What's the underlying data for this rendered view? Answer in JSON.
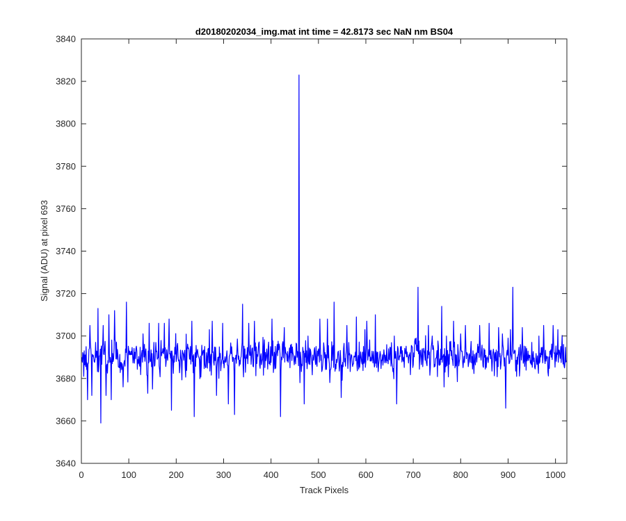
{
  "chart_data": {
    "type": "line",
    "title": "d20180202034_img.mat int time = 42.8173 sec  NaN nm BS04",
    "xlabel": "Track Pixels",
    "ylabel": "Signal (ADU) at pixel 693",
    "xlim": [
      0,
      1024
    ],
    "ylim": [
      3640,
      3840
    ],
    "xticks": [
      0,
      100,
      200,
      300,
      400,
      500,
      600,
      700,
      800,
      900,
      1000
    ],
    "yticks": [
      3640,
      3660,
      3680,
      3700,
      3720,
      3740,
      3760,
      3780,
      3800,
      3820,
      3840
    ],
    "grid": false,
    "line_color": "#0000ff",
    "noise": {
      "baseline": 3690,
      "min": 3659,
      "max": 3723,
      "count": 1024
    },
    "series": [
      {
        "name": "",
        "points": [
          [
            0,
            3690
          ],
          [
            5,
            3681
          ],
          [
            10,
            3695
          ],
          [
            13,
            3670
          ],
          [
            18,
            3705
          ],
          [
            22,
            3672
          ],
          [
            30,
            3697
          ],
          [
            35,
            3713
          ],
          [
            41,
            3659
          ],
          [
            46,
            3705
          ],
          [
            52,
            3672
          ],
          [
            58,
            3710
          ],
          [
            63,
            3670
          ],
          [
            70,
            3712
          ],
          [
            88,
            3676
          ],
          [
            95,
            3716
          ],
          [
            130,
            3701
          ],
          [
            140,
            3673
          ],
          [
            143,
            3706
          ],
          [
            150,
            3675
          ],
          [
            163,
            3706
          ],
          [
            175,
            3706
          ],
          [
            185,
            3708
          ],
          [
            190,
            3665
          ],
          [
            233,
            3707
          ],
          [
            238,
            3662
          ],
          [
            270,
            3703
          ],
          [
            276,
            3707
          ],
          [
            285,
            3672
          ],
          [
            298,
            3706
          ],
          [
            310,
            3668
          ],
          [
            323,
            3663
          ],
          [
            340,
            3715
          ],
          [
            353,
            3706
          ],
          [
            365,
            3707
          ],
          [
            402,
            3708
          ],
          [
            420,
            3662
          ],
          [
            428,
            3704
          ],
          [
            458,
            3686
          ],
          [
            459,
            3823
          ],
          [
            461,
            3678
          ],
          [
            470,
            3668
          ],
          [
            478,
            3700
          ],
          [
            503,
            3708
          ],
          [
            519,
            3708
          ],
          [
            533,
            3716
          ],
          [
            548,
            3671
          ],
          [
            560,
            3705
          ],
          [
            580,
            3709
          ],
          [
            598,
            3703
          ],
          [
            602,
            3707
          ],
          [
            620,
            3710
          ],
          [
            660,
            3700
          ],
          [
            665,
            3668
          ],
          [
            706,
            3699
          ],
          [
            710,
            3723
          ],
          [
            732,
            3705
          ],
          [
            740,
            3700
          ],
          [
            760,
            3714
          ],
          [
            765,
            3676
          ],
          [
            770,
            3700
          ],
          [
            785,
            3707
          ],
          [
            800,
            3701
          ],
          [
            810,
            3705
          ],
          [
            840,
            3705
          ],
          [
            860,
            3706
          ],
          [
            880,
            3704
          ],
          [
            888,
            3701
          ],
          [
            895,
            3666
          ],
          [
            900,
            3699
          ],
          [
            905,
            3703
          ],
          [
            910,
            3723
          ],
          [
            930,
            3704
          ],
          [
            950,
            3697
          ],
          [
            965,
            3700
          ],
          [
            975,
            3705
          ],
          [
            995,
            3705
          ],
          [
            1005,
            3703
          ],
          [
            1018,
            3686
          ],
          [
            1024,
            3690
          ]
        ]
      }
    ]
  }
}
